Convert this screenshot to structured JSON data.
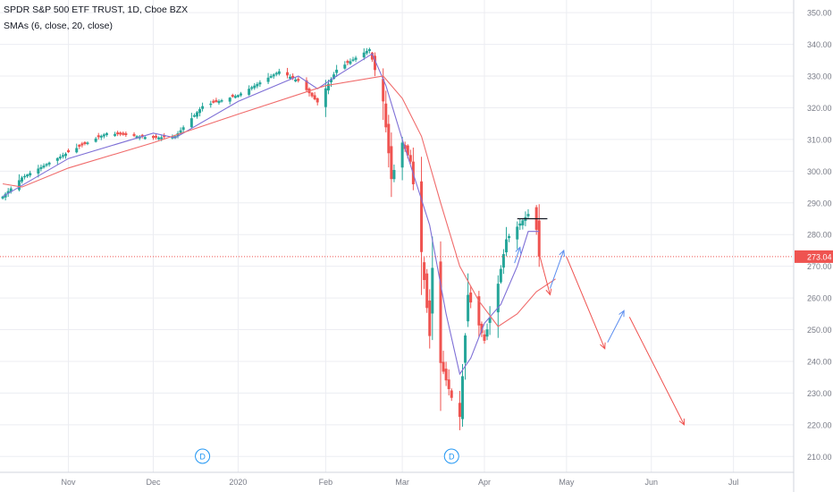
{
  "header": {
    "title": "SPDR S&P 500 ETF TRUST, 1D, Cboe BZX",
    "indicator": "SMAs (6, close, 20, close)"
  },
  "colors": {
    "up": "#26a69a",
    "down": "#ef5350",
    "sma_fast": "#7e6fd6",
    "sma_slow": "#f06b6b",
    "grid": "#ecedf2",
    "price_line": "#ef5350",
    "projection_down": "#ef5350",
    "projection_up": "#5b8def",
    "resistance": "#131722",
    "dividend": "#2196f3"
  },
  "chart_data": {
    "type": "candlestick",
    "title": "SPDR S&P 500 ETF TRUST, 1D, Cboe BZX",
    "xlabel": "",
    "ylabel": "",
    "xlim": [
      "2019-10-07",
      "2020-07-23"
    ],
    "ylim": [
      205,
      354
    ],
    "y_ticks": [
      210,
      220,
      230,
      240,
      250,
      260,
      270,
      280,
      290,
      300,
      310,
      320,
      330,
      340,
      350
    ],
    "x_ticks": [
      {
        "date": "2019-11-01",
        "label": "Nov"
      },
      {
        "date": "2019-12-02",
        "label": "Dec"
      },
      {
        "date": "2020-01-02",
        "label": "2020"
      },
      {
        "date": "2020-02-03",
        "label": "Feb"
      },
      {
        "date": "2020-03-02",
        "label": "Mar"
      },
      {
        "date": "2020-04-01",
        "label": "Apr"
      },
      {
        "date": "2020-05-01",
        "label": "May"
      },
      {
        "date": "2020-06-01",
        "label": "Jun"
      },
      {
        "date": "2020-07-01",
        "label": "Jul"
      }
    ],
    "grid": true,
    "last_price": 273.04,
    "last_price_label": "273.04",
    "key_points": [
      {
        "date": "2019-10-08",
        "close": 292.0
      },
      {
        "date": "2019-10-15",
        "close": 298.0
      },
      {
        "date": "2019-11-01",
        "close": 306.0
      },
      {
        "date": "2019-11-15",
        "close": 312.0
      },
      {
        "date": "2019-12-02",
        "close": 310.5
      },
      {
        "date": "2019-12-10",
        "close": 311.0
      },
      {
        "date": "2019-12-20",
        "close": 320.5
      },
      {
        "date": "2020-01-02",
        "close": 324.0
      },
      {
        "date": "2020-01-17",
        "close": 331.5
      },
      {
        "date": "2020-01-24",
        "close": 328.5
      },
      {
        "date": "2020-01-31",
        "close": 321.7
      },
      {
        "date": "2020-02-07",
        "close": 332.0
      },
      {
        "date": "2020-02-19",
        "close": 338.5
      },
      {
        "date": "2020-02-24",
        "close": 322.0
      },
      {
        "date": "2020-02-27",
        "close": 297.5
      },
      {
        "date": "2020-03-02",
        "close": 309.0
      },
      {
        "date": "2020-03-05",
        "close": 303.0
      },
      {
        "date": "2020-03-09",
        "close": 274.5
      },
      {
        "date": "2020-03-12",
        "close": 248.0
      },
      {
        "date": "2020-03-13",
        "close": 269.5
      },
      {
        "date": "2020-03-16",
        "close": 239.5
      },
      {
        "date": "2020-03-20",
        "close": 228.5
      },
      {
        "date": "2020-03-23",
        "close": 222.5
      },
      {
        "date": "2020-03-26",
        "close": 261.0
      },
      {
        "date": "2020-04-01",
        "close": 246.5
      },
      {
        "date": "2020-04-06",
        "close": 264.5
      },
      {
        "date": "2020-04-09",
        "close": 278.5
      },
      {
        "date": "2020-04-14",
        "close": 283.5
      },
      {
        "date": "2020-04-17",
        "close": 286.5
      },
      {
        "date": "2020-04-20",
        "close": 281.5
      },
      {
        "date": "2020-04-21",
        "close": 273.04
      }
    ],
    "series": [
      {
        "name": "SMA 6",
        "points": [
          [
            "2019-10-08",
            292
          ],
          [
            "2019-11-01",
            304
          ],
          [
            "2019-12-02",
            312
          ],
          [
            "2019-12-10",
            310.5
          ],
          [
            "2020-01-02",
            322
          ],
          [
            "2020-01-24",
            330
          ],
          [
            "2020-01-31",
            326
          ],
          [
            "2020-02-07",
            330
          ],
          [
            "2020-02-20",
            337
          ],
          [
            "2020-02-25",
            327
          ],
          [
            "2020-03-02",
            310
          ],
          [
            "2020-03-12",
            283
          ],
          [
            "2020-03-18",
            255
          ],
          [
            "2020-03-23",
            236
          ],
          [
            "2020-03-27",
            241
          ],
          [
            "2020-04-01",
            252
          ],
          [
            "2020-04-07",
            258
          ],
          [
            "2020-04-13",
            270
          ],
          [
            "2020-04-17",
            281
          ],
          [
            "2020-04-21",
            281
          ]
        ]
      },
      {
        "name": "SMA 20",
        "points": [
          [
            "2019-10-08",
            296
          ],
          [
            "2019-10-15",
            295
          ],
          [
            "2019-11-01",
            301
          ],
          [
            "2019-12-02",
            309
          ],
          [
            "2020-01-02",
            318
          ],
          [
            "2020-02-03",
            327
          ],
          [
            "2020-02-24",
            330
          ],
          [
            "2020-03-02",
            323
          ],
          [
            "2020-03-09",
            311
          ],
          [
            "2020-03-16",
            290
          ],
          [
            "2020-03-23",
            270
          ],
          [
            "2020-03-30",
            259
          ],
          [
            "2020-04-06",
            251
          ],
          [
            "2020-04-13",
            255
          ],
          [
            "2020-04-20",
            262
          ],
          [
            "2020-04-27",
            266
          ]
        ]
      }
    ],
    "annotations": [
      {
        "kind": "resistance",
        "from": [
          "2020-04-13",
          285
        ],
        "to": [
          "2020-04-24",
          285
        ]
      },
      {
        "kind": "projection-down",
        "from": [
          "2020-04-21",
          274
        ],
        "to": [
          "2020-04-25",
          261
        ]
      },
      {
        "kind": "projection-up",
        "from": [
          "2020-04-25",
          263
        ],
        "to": [
          "2020-04-30",
          275
        ]
      },
      {
        "kind": "projection-down",
        "from": [
          "2020-05-01",
          273
        ],
        "to": [
          "2020-05-15",
          244
        ]
      },
      {
        "kind": "projection-up",
        "from": [
          "2020-05-16",
          246
        ],
        "to": [
          "2020-05-22",
          256
        ]
      },
      {
        "kind": "projection-down",
        "from": [
          "2020-05-24",
          254
        ],
        "to": [
          "2020-06-13",
          220
        ]
      },
      {
        "kind": "projection-up",
        "from": [
          "2020-04-12",
          271
        ],
        "to": [
          "2020-04-14",
          276
        ]
      }
    ],
    "events": [
      {
        "date": "2019-12-20",
        "label": "D"
      },
      {
        "date": "2020-03-20",
        "label": "D"
      }
    ]
  }
}
